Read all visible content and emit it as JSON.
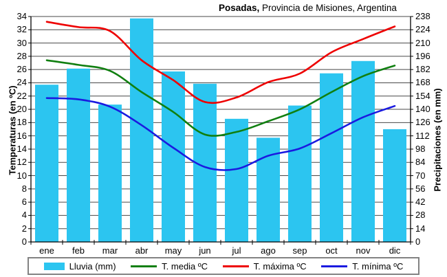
{
  "title": {
    "bold": "Posadas,",
    "rest": " Provincia de Misiones, Argentina"
  },
  "axes": {
    "left_title": "Temperaturas (en ºC)",
    "right_title": "Precipitaciones (en mm)",
    "left_ticks": [
      0,
      2,
      4,
      6,
      8,
      10,
      12,
      14,
      16,
      18,
      20,
      22,
      24,
      26,
      28,
      30,
      32,
      34
    ],
    "right_ticks": [
      0,
      14,
      28,
      42,
      56,
      70,
      84,
      98,
      112,
      126,
      140,
      154,
      168,
      182,
      196,
      210,
      224,
      238
    ],
    "left_range": [
      0,
      34
    ],
    "right_range": [
      0,
      238
    ]
  },
  "chart_data": {
    "type": "combo bar+line (climograph)",
    "title": "Posadas, Provincia de Misiones, Argentina",
    "categories": [
      "ene",
      "feb",
      "mar",
      "abr",
      "may",
      "jun",
      "jul",
      "ago",
      "sep",
      "oct",
      "nov",
      "dic"
    ],
    "grid": true,
    "legend_position": "bottom",
    "left_axis": {
      "label": "Temperaturas (en ºC)",
      "range": [
        0,
        34
      ],
      "step": 2
    },
    "right_axis": {
      "label": "Precipitaciones (en mm)",
      "range": [
        0,
        238
      ],
      "step": 14
    },
    "bar_series": {
      "name": "Lluvia (mm)",
      "axis": "right",
      "color": "#2cc5f0",
      "values": [
        166,
        183,
        145,
        236,
        180,
        167,
        130,
        110,
        144,
        178,
        191,
        119
      ]
    },
    "line_series": [
      {
        "name": "T. media ºC",
        "axis": "left",
        "color": "#107f10",
        "values": [
          27.4,
          26.7,
          25.8,
          22.6,
          19.6,
          16.2,
          16.6,
          18.2,
          20.0,
          22.6,
          25.0,
          26.6
        ]
      },
      {
        "name": "T. máxima ºC",
        "axis": "left",
        "color": "#ee0000",
        "values": [
          33.2,
          32.4,
          31.8,
          27.4,
          24.4,
          21.1,
          21.8,
          24.1,
          25.4,
          28.6,
          30.6,
          32.5
        ]
      },
      {
        "name": "T. mínima ºC",
        "axis": "left",
        "color": "#1a1ae0",
        "values": [
          21.7,
          21.5,
          20.4,
          17.6,
          14.2,
          11.3,
          11.0,
          13.0,
          14.1,
          16.4,
          18.8,
          20.5
        ]
      }
    ]
  },
  "legend": {
    "items": [
      {
        "label": "Lluvia (mm)",
        "swatch": "rect",
        "color": "#2cc5f0"
      },
      {
        "label": "T. media ºC",
        "swatch": "line",
        "color": "#107f10"
      },
      {
        "label": "T. máxima ºC",
        "swatch": "line",
        "color": "#ee0000"
      },
      {
        "label": "T. mínima ºC",
        "swatch": "line",
        "color": "#1a1ae0"
      }
    ]
  },
  "style": {
    "gridline_color": "#474747",
    "axis_color": "#000000"
  }
}
